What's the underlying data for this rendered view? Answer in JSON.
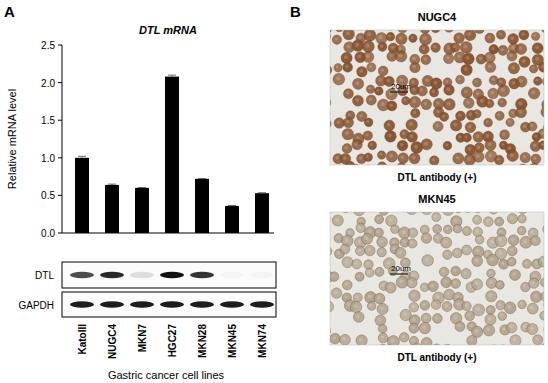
{
  "panels": [
    "A",
    "B"
  ],
  "chart_data": {
    "type": "bar",
    "title": "DTL mRNA",
    "y_label": "Relative mRNA level",
    "x_label": "Gastric cancer cell lines",
    "categories": [
      "KatoIII",
      "NUGC4",
      "MKN7",
      "HGC27",
      "MKN28",
      "MKN45",
      "MKN74"
    ],
    "values": [
      1.0,
      0.64,
      0.6,
      2.08,
      0.72,
      0.36,
      0.53
    ],
    "errors": [
      0.02,
      0.01,
      0.005,
      0.02,
      0.005,
      0.005,
      0.005
    ],
    "color": "#000000",
    "ylim": [
      0,
      2.5
    ],
    "yticks": [
      {
        "value": 0,
        "label": "0.0"
      },
      {
        "value": 0.5,
        "label": "0.5"
      },
      {
        "value": 1,
        "label": "1.0"
      },
      {
        "value": 1.5,
        "label": "1.5"
      },
      {
        "value": 2,
        "label": "2.0"
      },
      {
        "value": 2.5,
        "label": "2.5"
      }
    ],
    "grid": false
  },
  "blot": {
    "rows": [
      {
        "label": "DTL",
        "intensity": [
          0.75,
          0.9,
          0.12,
          1.0,
          0.85,
          0.03,
          0.03
        ]
      },
      {
        "label": "GAPDH",
        "intensity": [
          0.95,
          0.95,
          0.95,
          0.95,
          0.95,
          0.95,
          0.95
        ]
      }
    ]
  },
  "images": [
    {
      "title": "NUGC4",
      "caption": "DTL antibody (+)",
      "scale_bar": "20um",
      "color": "#8a5530"
    },
    {
      "title": "MKN45",
      "caption": "DTL antibody (+)",
      "scale_bar": "20um",
      "color": "#b3a48f"
    }
  ]
}
